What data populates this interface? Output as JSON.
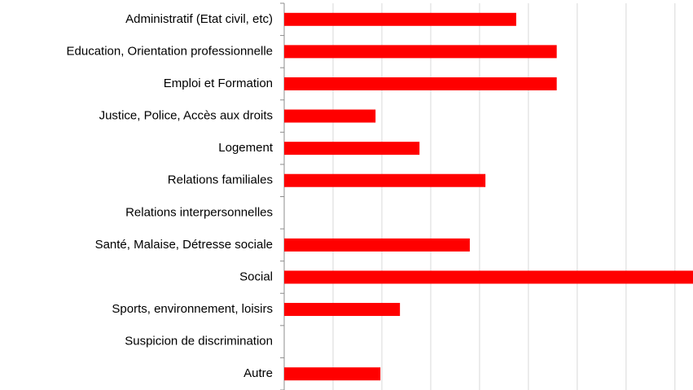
{
  "chart_data": {
    "type": "hbar",
    "categories": [
      "Administratif (Etat civil, etc)",
      "Education, Orientation professionnelle",
      "Emploi et Formation",
      "Justice, Police, Accès aux droits",
      "Logement",
      "Relations familiales",
      "Relations interpersonnelles",
      "Santé, Malaise, Détresse sociale",
      "Social",
      "Sports, environnement, loisirs",
      "Suspicion de discrimination",
      "Autre"
    ],
    "values": [
      4.75,
      5.58,
      5.58,
      1.87,
      2.77,
      4.12,
      0,
      3.8,
      8.37,
      2.37,
      0,
      1.97
    ],
    "color": "#ff0000",
    "xlim": [
      0,
      8.37
    ],
    "xticks": [
      0,
      1,
      2,
      3,
      4,
      5,
      6,
      7,
      8
    ],
    "grid": true
  }
}
